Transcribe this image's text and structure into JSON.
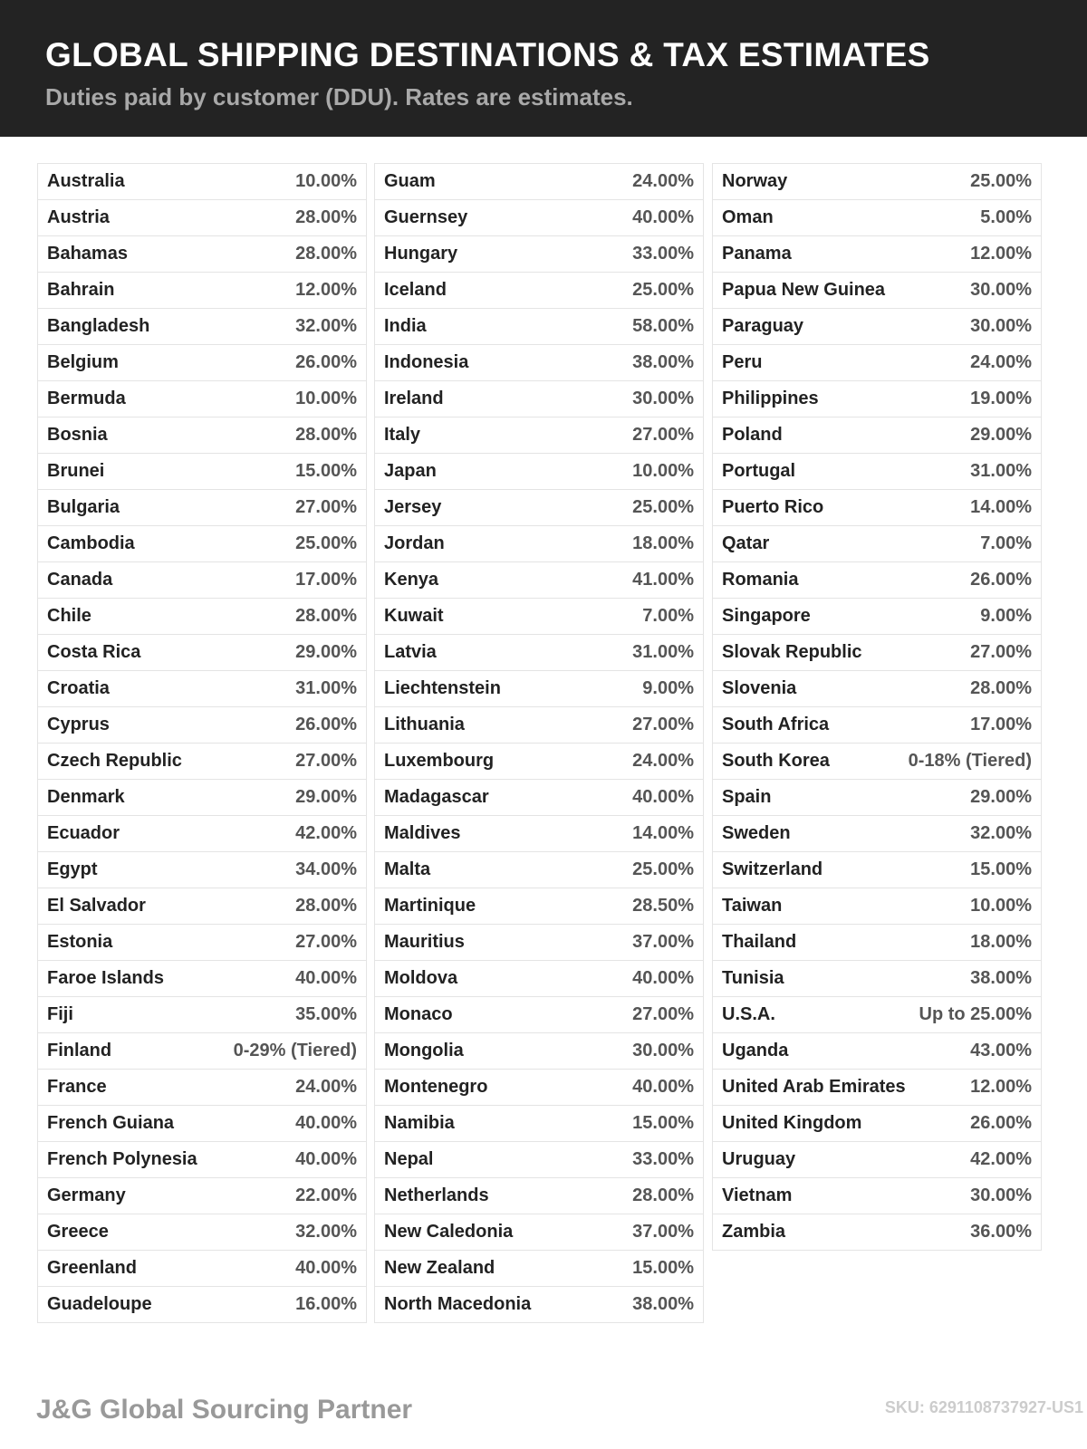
{
  "header": {
    "title": "GLOBAL SHIPPING DESTINATIONS & TAX ESTIMATES",
    "subtitle": "Duties paid by customer (DDU). Rates are estimates."
  },
  "columns": [
    {
      "rows": [
        [
          "Australia",
          "10.00%"
        ],
        [
          "Austria",
          "28.00%"
        ],
        [
          "Bahamas",
          "28.00%"
        ],
        [
          "Bahrain",
          "12.00%"
        ],
        [
          "Bangladesh",
          "32.00%"
        ],
        [
          "Belgium",
          "26.00%"
        ],
        [
          "Bermuda",
          "10.00%"
        ],
        [
          "Bosnia",
          "28.00%"
        ],
        [
          "Brunei",
          "15.00%"
        ],
        [
          "Bulgaria",
          "27.00%"
        ],
        [
          "Cambodia",
          "25.00%"
        ],
        [
          "Canada",
          "17.00%"
        ],
        [
          "Chile",
          "28.00%"
        ],
        [
          "Costa Rica",
          "29.00%"
        ],
        [
          "Croatia",
          "31.00%"
        ],
        [
          "Cyprus",
          "26.00%"
        ],
        [
          "Czech Republic",
          "27.00%"
        ],
        [
          "Denmark",
          "29.00%"
        ],
        [
          "Ecuador",
          "42.00%"
        ],
        [
          "Egypt",
          "34.00%"
        ],
        [
          "El Salvador",
          "28.00%"
        ],
        [
          "Estonia",
          "27.00%"
        ],
        [
          "Faroe Islands",
          "40.00%"
        ],
        [
          "Fiji",
          "35.00%"
        ],
        [
          "Finland",
          "0-29% (Tiered)"
        ],
        [
          "France",
          "24.00%"
        ],
        [
          "French Guiana",
          "40.00%"
        ],
        [
          "French Polynesia",
          "40.00%"
        ],
        [
          "Germany",
          "22.00%"
        ],
        [
          "Greece",
          "32.00%"
        ],
        [
          "Greenland",
          "40.00%"
        ],
        [
          "Guadeloupe",
          "16.00%"
        ]
      ]
    },
    {
      "rows": [
        [
          "Guam",
          "24.00%"
        ],
        [
          "Guernsey",
          "40.00%"
        ],
        [
          "Hungary",
          "33.00%"
        ],
        [
          "Iceland",
          "25.00%"
        ],
        [
          "India",
          "58.00%"
        ],
        [
          "Indonesia",
          "38.00%"
        ],
        [
          "Ireland",
          "30.00%"
        ],
        [
          "Italy",
          "27.00%"
        ],
        [
          "Japan",
          "10.00%"
        ],
        [
          "Jersey",
          "25.00%"
        ],
        [
          "Jordan",
          "18.00%"
        ],
        [
          "Kenya",
          "41.00%"
        ],
        [
          "Kuwait",
          "7.00%"
        ],
        [
          "Latvia",
          "31.00%"
        ],
        [
          "Liechtenstein",
          "9.00%"
        ],
        [
          "Lithuania",
          "27.00%"
        ],
        [
          "Luxembourg",
          "24.00%"
        ],
        [
          "Madagascar",
          "40.00%"
        ],
        [
          "Maldives",
          "14.00%"
        ],
        [
          "Malta",
          "25.00%"
        ],
        [
          "Martinique",
          "28.50%"
        ],
        [
          "Mauritius",
          "37.00%"
        ],
        [
          "Moldova",
          "40.00%"
        ],
        [
          "Monaco",
          "27.00%"
        ],
        [
          "Mongolia",
          "30.00%"
        ],
        [
          "Montenegro",
          "40.00%"
        ],
        [
          "Namibia",
          "15.00%"
        ],
        [
          "Nepal",
          "33.00%"
        ],
        [
          "Netherlands",
          "28.00%"
        ],
        [
          "New Caledonia",
          "37.00%"
        ],
        [
          "New Zealand",
          "15.00%"
        ],
        [
          "North Macedonia",
          "38.00%"
        ]
      ]
    },
    {
      "rows": [
        [
          "Norway",
          "25.00%"
        ],
        [
          "Oman",
          "5.00%"
        ],
        [
          "Panama",
          "12.00%"
        ],
        [
          "Papua New Guinea",
          "30.00%"
        ],
        [
          "Paraguay",
          "30.00%"
        ],
        [
          "Peru",
          "24.00%"
        ],
        [
          "Philippines",
          "19.00%"
        ],
        [
          "Poland",
          "29.00%"
        ],
        [
          "Portugal",
          "31.00%"
        ],
        [
          "Puerto Rico",
          "14.00%"
        ],
        [
          "Qatar",
          "7.00%"
        ],
        [
          "Romania",
          "26.00%"
        ],
        [
          "Singapore",
          "9.00%"
        ],
        [
          "Slovak Republic",
          "27.00%"
        ],
        [
          "Slovenia",
          "28.00%"
        ],
        [
          "South Africa",
          "17.00%"
        ],
        [
          "South Korea",
          "0-18% (Tiered)"
        ],
        [
          "Spain",
          "29.00%"
        ],
        [
          "Sweden",
          "32.00%"
        ],
        [
          "Switzerland",
          "15.00%"
        ],
        [
          "Taiwan",
          "10.00%"
        ],
        [
          "Thailand",
          "18.00%"
        ],
        [
          "Tunisia",
          "38.00%"
        ],
        [
          "U.S.A.",
          "Up to 25.00%"
        ],
        [
          "Uganda",
          "43.00%"
        ],
        [
          "United Arab Emirates",
          "12.00%"
        ],
        [
          "United Kingdom",
          "26.00%"
        ],
        [
          "Uruguay",
          "42.00%"
        ],
        [
          "Vietnam",
          "30.00%"
        ],
        [
          "Zambia",
          "36.00%"
        ]
      ]
    }
  ],
  "footer": {
    "brand": "J&G Global Sourcing Partner",
    "sku": "SKU: 6291108737927-US1"
  }
}
